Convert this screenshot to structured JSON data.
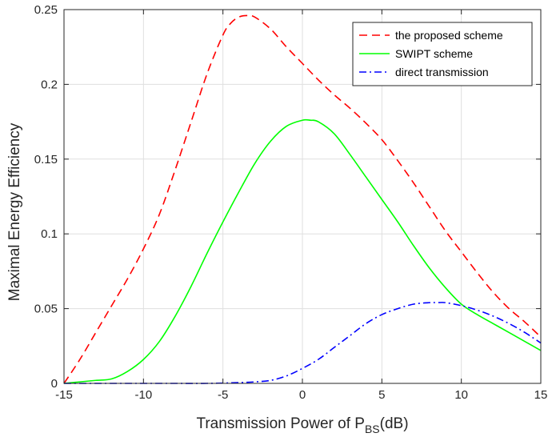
{
  "chart_data": {
    "type": "line",
    "xlabel": "Transmission Power of P",
    "xlabel_sub": "BS",
    "xlabel_unit": "(dB)",
    "ylabel": "Maximal Energy Efficiency",
    "xlim": [
      -15,
      15
    ],
    "ylim": [
      0,
      0.25
    ],
    "xticks": [
      -15,
      -10,
      -5,
      0,
      5,
      10,
      15
    ],
    "xtick_labels": [
      "-15",
      "-10",
      "-5",
      "0",
      "5",
      "10",
      "15"
    ],
    "yticks": [
      0,
      0.05,
      0.1,
      0.15,
      0.2,
      0.25
    ],
    "ytick_labels": [
      "0",
      "0.05",
      "0.1",
      "0.15",
      "0.2",
      "0.25"
    ],
    "grid": true,
    "legend_position": "top-right",
    "series": [
      {
        "name": "the proposed scheme",
        "color": "#ff0000",
        "dash": "dashed",
        "x": [
          -15,
          -14,
          -13,
          -12,
          -11,
          -10,
          -9,
          -8,
          -7,
          -6,
          -5,
          -4.5,
          -4,
          -3.5,
          -3,
          -2,
          -1,
          0,
          1,
          2,
          3,
          4,
          5,
          6,
          7,
          8,
          9,
          10,
          11,
          12,
          13,
          14,
          15
        ],
        "y": [
          0,
          0.016,
          0.034,
          0.052,
          0.07,
          0.09,
          0.113,
          0.143,
          0.175,
          0.207,
          0.233,
          0.241,
          0.245,
          0.246,
          0.245,
          0.237,
          0.225,
          0.214,
          0.203,
          0.193,
          0.184,
          0.174,
          0.163,
          0.149,
          0.134,
          0.118,
          0.102,
          0.088,
          0.074,
          0.061,
          0.05,
          0.041,
          0.031
        ]
      },
      {
        "name": "SWIPT scheme",
        "color": "#00ff00",
        "dash": "solid",
        "x": [
          -15,
          -14,
          -13,
          -12,
          -11,
          -10,
          -9,
          -8,
          -7,
          -6,
          -5,
          -4,
          -3,
          -2,
          -1,
          0,
          0.5,
          1,
          2,
          3,
          4,
          5,
          6,
          7,
          8,
          9,
          10,
          11,
          12,
          13,
          14,
          15
        ],
        "y": [
          0,
          0.001,
          0.002,
          0.003,
          0.008,
          0.016,
          0.028,
          0.045,
          0.065,
          0.087,
          0.108,
          0.128,
          0.147,
          0.162,
          0.172,
          0.176,
          0.176,
          0.175,
          0.167,
          0.153,
          0.138,
          0.123,
          0.108,
          0.092,
          0.077,
          0.064,
          0.053,
          0.046,
          0.04,
          0.034,
          0.028,
          0.022
        ]
      },
      {
        "name": "direct transmission",
        "color": "#0000ff",
        "dash": "dashdot",
        "x": [
          -15,
          -12,
          -10,
          -8,
          -6,
          -4,
          -3,
          -2,
          -1,
          0,
          1,
          2,
          3,
          4,
          5,
          6,
          7,
          8,
          8.5,
          9,
          10,
          11,
          12,
          13,
          14,
          15
        ],
        "y": [
          0,
          0,
          0,
          0,
          0,
          0.0005,
          0.001,
          0.002,
          0.005,
          0.01,
          0.016,
          0.024,
          0.032,
          0.04,
          0.046,
          0.05,
          0.053,
          0.054,
          0.054,
          0.054,
          0.052,
          0.049,
          0.045,
          0.04,
          0.034,
          0.027
        ]
      }
    ]
  }
}
